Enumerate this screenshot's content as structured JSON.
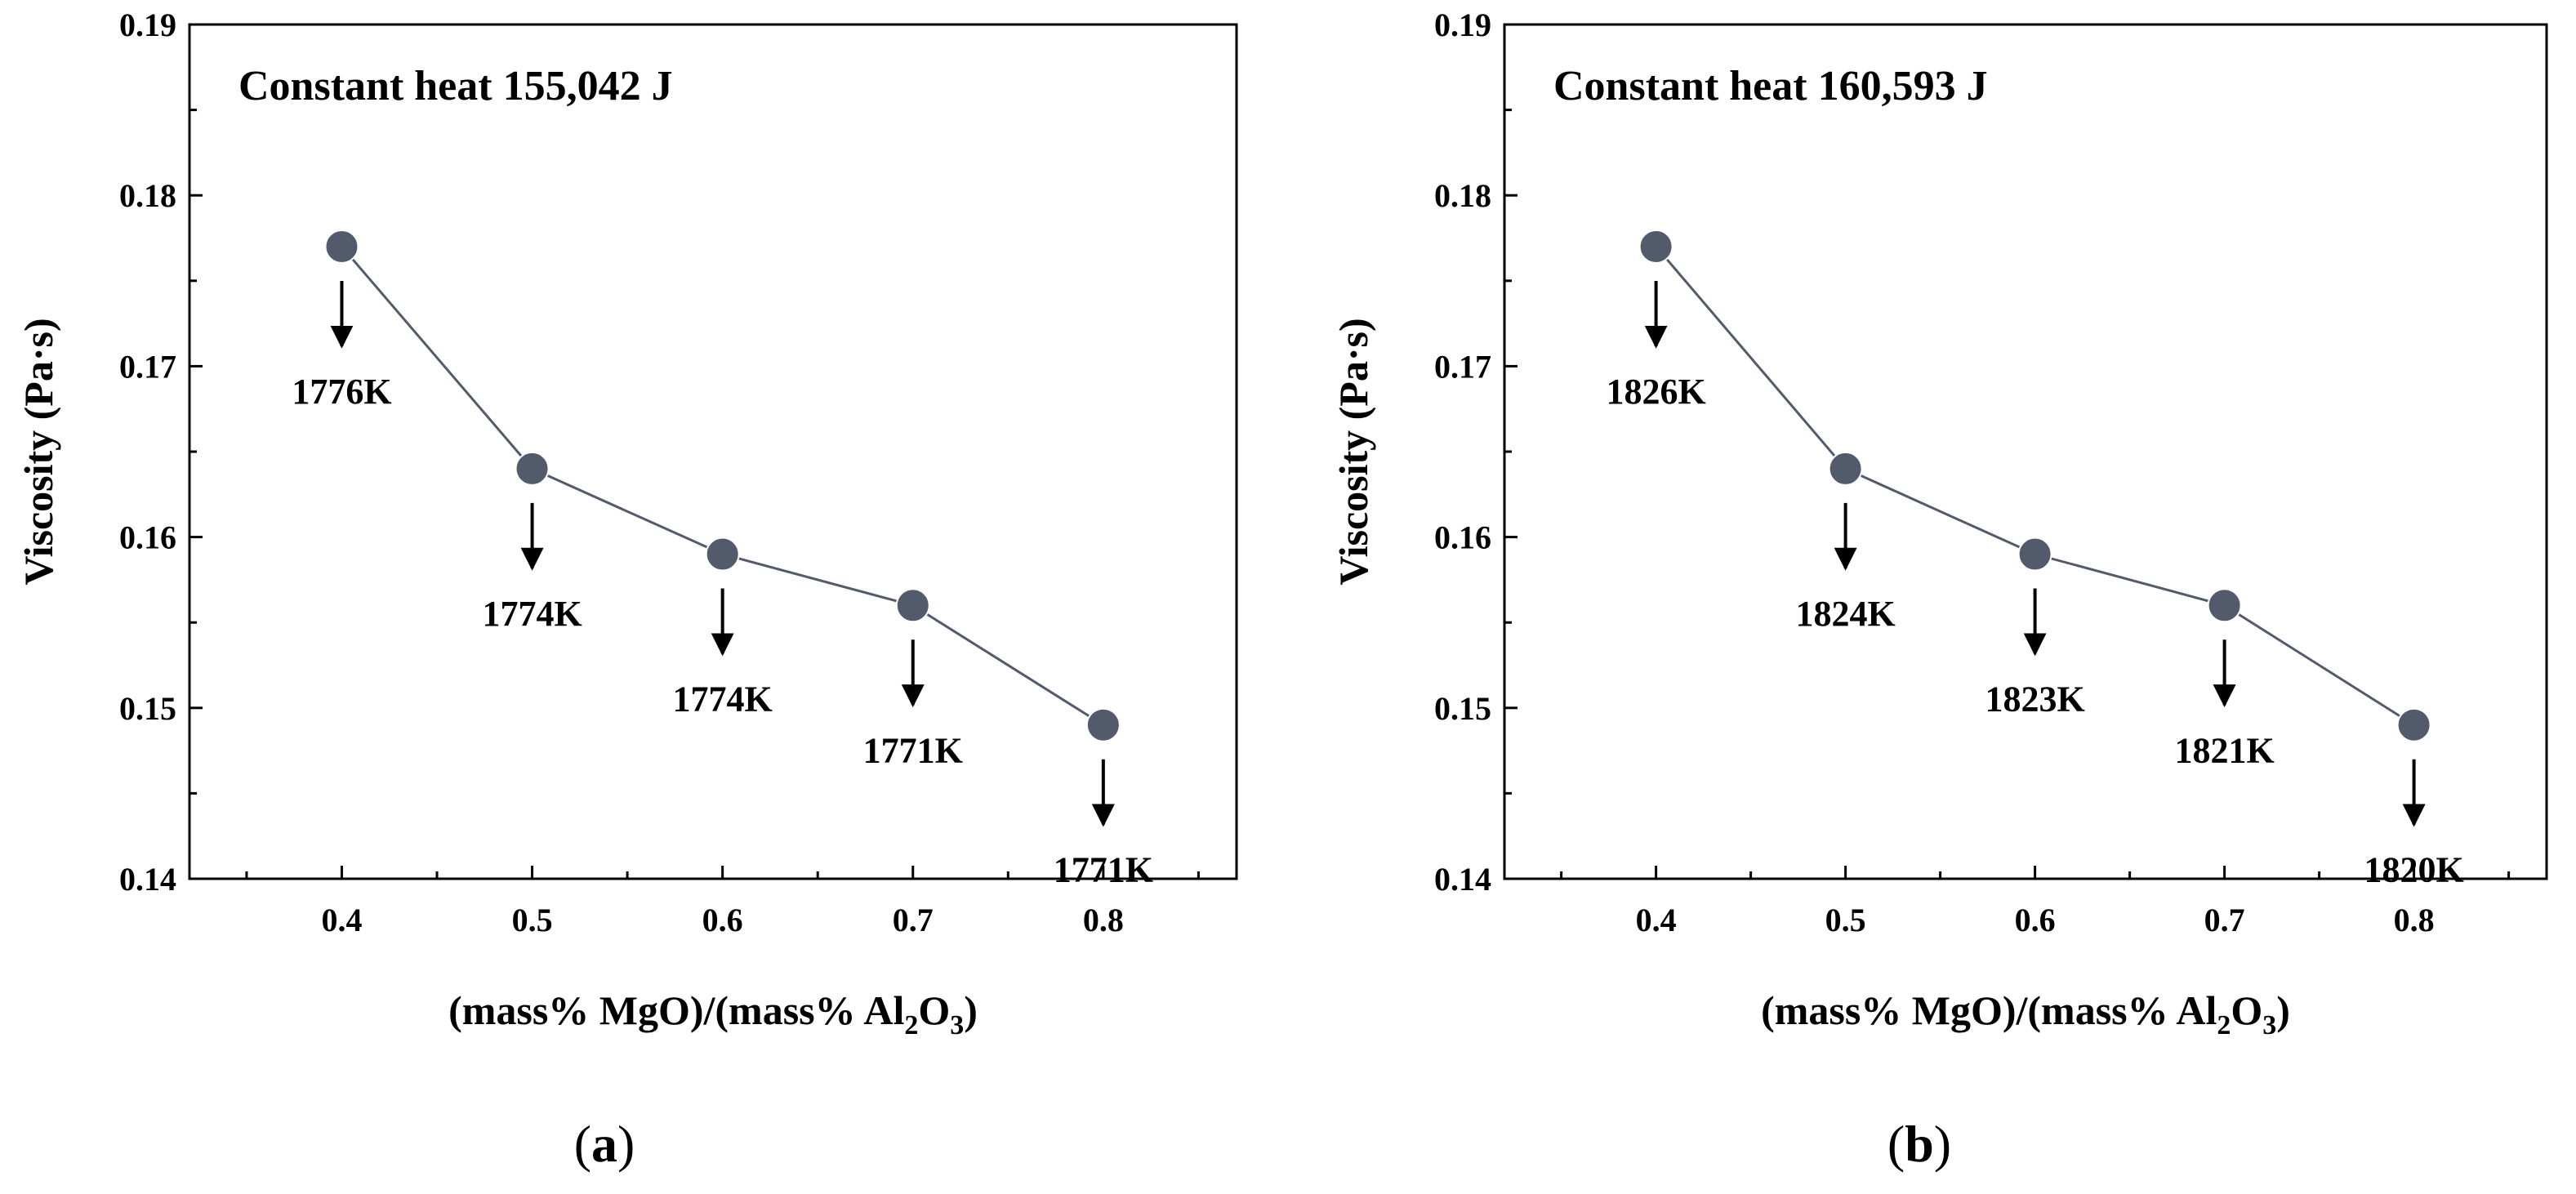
{
  "chart_data": [
    {
      "type": "line",
      "panel_label": "a",
      "title": "Constant heat 155,042 J",
      "xlabel": "(mass% MgO)/(mass% Al2O3)",
      "ylabel": "Viscosity (Pa·s)",
      "xlim": [
        0.32,
        0.87
      ],
      "ylim": [
        0.14,
        0.19
      ],
      "xticks": [
        0.4,
        0.5,
        0.6,
        0.7,
        0.8
      ],
      "yticks": [
        0.14,
        0.15,
        0.16,
        0.17,
        0.18,
        0.19
      ],
      "x": [
        0.4,
        0.5,
        0.6,
        0.7,
        0.8
      ],
      "values": [
        0.177,
        0.164,
        0.159,
        0.156,
        0.149
      ],
      "annotations": [
        "1776K",
        "1774K",
        "1774K",
        "1771K",
        "1771K"
      ]
    },
    {
      "type": "line",
      "panel_label": "b",
      "title": "Constant heat 160,593 J",
      "xlabel": "(mass% MgO)/(mass% Al2O3)",
      "ylabel": "Viscosity (Pa·s)",
      "xlim": [
        0.32,
        0.87
      ],
      "ylim": [
        0.14,
        0.19
      ],
      "xticks": [
        0.4,
        0.5,
        0.6,
        0.7,
        0.8
      ],
      "yticks": [
        0.14,
        0.15,
        0.16,
        0.17,
        0.18,
        0.19
      ],
      "x": [
        0.4,
        0.5,
        0.6,
        0.7,
        0.8
      ],
      "values": [
        0.177,
        0.164,
        0.159,
        0.156,
        0.149
      ],
      "annotations": [
        "1826K",
        "1824K",
        "1823K",
        "1821K",
        "1820K"
      ]
    }
  ],
  "colors": {
    "marker": "#525a6b",
    "line": "#525a6b",
    "axis": "#000000"
  }
}
